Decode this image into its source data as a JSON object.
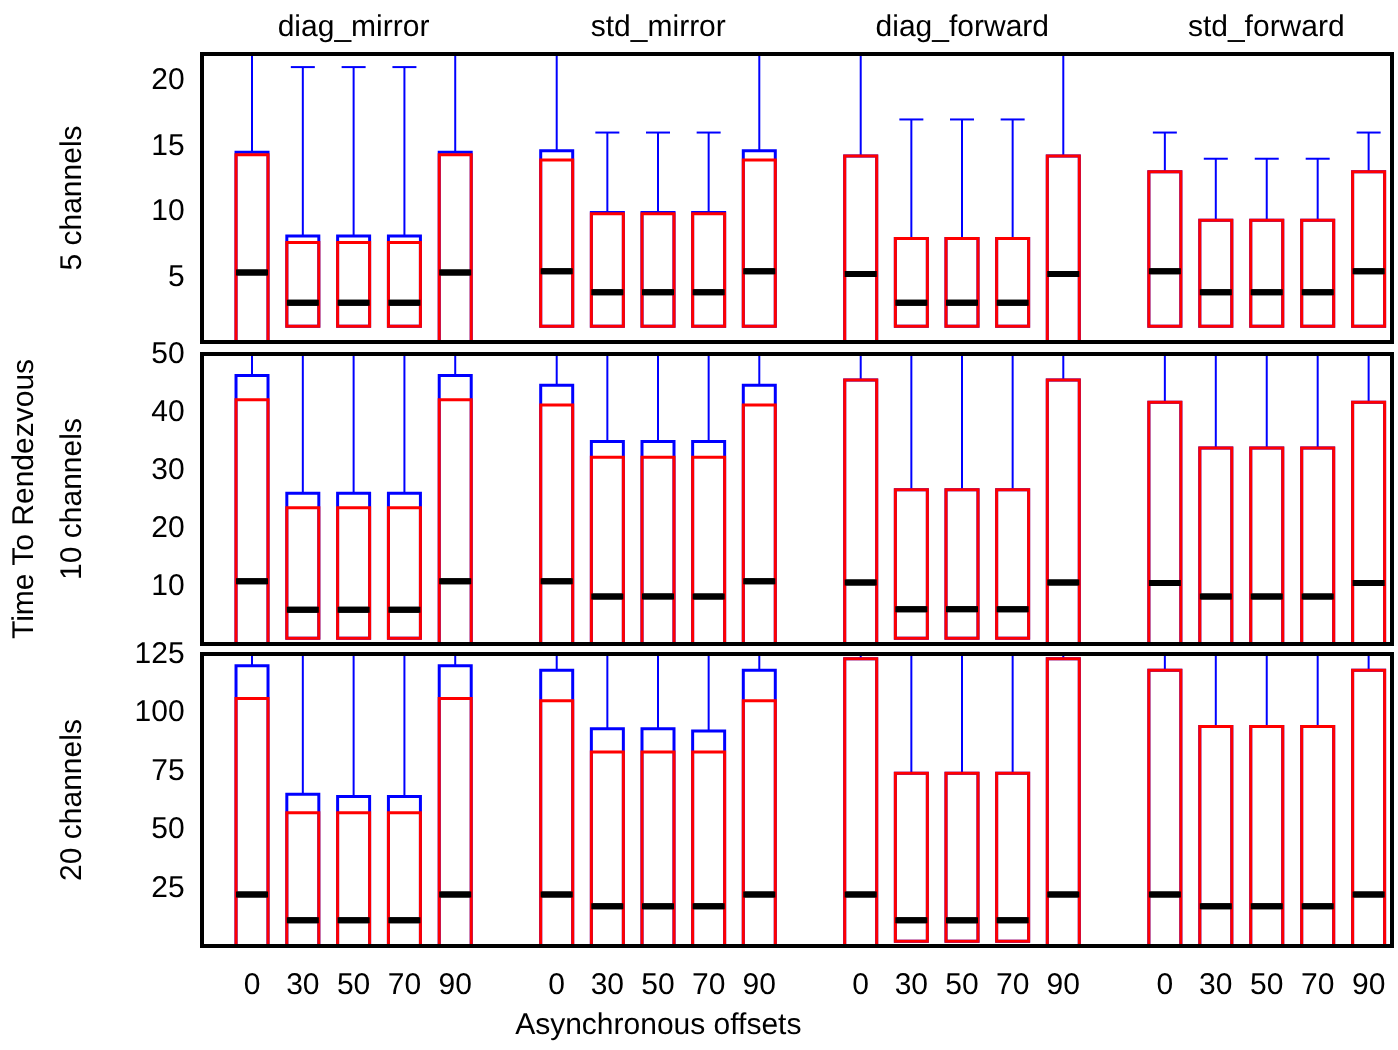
{
  "chart_data": [
    {
      "type": "box",
      "title": "diag_mirror",
      "ylabel": "5 channels",
      "tick_labels": "y",
      "ylim": [
        0,
        22
      ],
      "yticks": [
        5,
        10,
        15,
        20
      ],
      "categories": [
        "0",
        "30",
        "50",
        "70",
        "90"
      ],
      "series": [
        {
          "color": "#0000ff",
          "boxes": [
            {
              "low": 0,
              "q1": 0,
              "median": 5.3,
              "q3": 14.5,
              "high": 22
            },
            {
              "low": 1.2,
              "q1": 1.2,
              "median": 3,
              "q3": 8.1,
              "high": 21
            },
            {
              "low": 1.2,
              "q1": 1.2,
              "median": 3,
              "q3": 8.1,
              "high": 21
            },
            {
              "low": 1.2,
              "q1": 1.2,
              "median": 3,
              "q3": 8.1,
              "high": 21
            },
            {
              "low": 0,
              "q1": 0,
              "median": 5.3,
              "q3": 14.5,
              "high": 22
            }
          ]
        },
        {
          "color": "#ff0000",
          "boxes": [
            {
              "low": 0,
              "q1": 0,
              "median": 5.3,
              "q3": 14.3,
              "high": 14.3
            },
            {
              "low": 1.2,
              "q1": 1.2,
              "median": 3,
              "q3": 7.6,
              "high": 7.6
            },
            {
              "low": 1.2,
              "q1": 1.2,
              "median": 3,
              "q3": 7.6,
              "high": 7.6
            },
            {
              "low": 1.2,
              "q1": 1.2,
              "median": 3,
              "q3": 7.6,
              "high": 7.6
            },
            {
              "low": 0,
              "q1": 0,
              "median": 5.3,
              "q3": 14.3,
              "high": 14.3
            }
          ]
        }
      ]
    },
    {
      "type": "box",
      "title": "std_mirror",
      "tick_labels": false,
      "ylim": [
        0,
        22
      ],
      "yticks": [
        5,
        10,
        15,
        20
      ],
      "categories": [
        "0",
        "30",
        "50",
        "70",
        "90"
      ],
      "series": [
        {
          "color": "#0000ff",
          "boxes": [
            {
              "low": 1.2,
              "q1": 1.2,
              "median": 5.4,
              "q3": 14.6,
              "high": 22
            },
            {
              "low": 1.2,
              "q1": 1.2,
              "median": 3.8,
              "q3": 9.9,
              "high": 16
            },
            {
              "low": 1.2,
              "q1": 1.2,
              "median": 3.8,
              "q3": 9.9,
              "high": 16
            },
            {
              "low": 1.2,
              "q1": 1.2,
              "median": 3.8,
              "q3": 9.9,
              "high": 16
            },
            {
              "low": 1.2,
              "q1": 1.2,
              "median": 5.4,
              "q3": 14.6,
              "high": 22
            }
          ]
        },
        {
          "color": "#ff0000",
          "boxes": [
            {
              "low": 1.2,
              "q1": 1.2,
              "median": 5.4,
              "q3": 13.9,
              "high": 13.9
            },
            {
              "low": 1.2,
              "q1": 1.2,
              "median": 3.8,
              "q3": 9.8,
              "high": 9.8
            },
            {
              "low": 1.2,
              "q1": 1.2,
              "median": 3.8,
              "q3": 9.8,
              "high": 9.8
            },
            {
              "low": 1.2,
              "q1": 1.2,
              "median": 3.8,
              "q3": 9.8,
              "high": 9.8
            },
            {
              "low": 1.2,
              "q1": 1.2,
              "median": 5.4,
              "q3": 13.9,
              "high": 13.9
            }
          ]
        }
      ]
    },
    {
      "type": "box",
      "title": "diag_forward",
      "tick_labels": false,
      "ylim": [
        0,
        22
      ],
      "yticks": [
        5,
        10,
        15,
        20
      ],
      "categories": [
        "0",
        "30",
        "50",
        "70",
        "90"
      ],
      "series": [
        {
          "color": "#0000ff",
          "boxes": [
            {
              "low": 0,
              "q1": 0,
              "median": 5.2,
              "q3": 14.2,
              "high": 22
            },
            {
              "low": 1.2,
              "q1": 1.2,
              "median": 3,
              "q3": 7.9,
              "high": 17
            },
            {
              "low": 1.2,
              "q1": 1.2,
              "median": 3,
              "q3": 7.9,
              "high": 17
            },
            {
              "low": 1.2,
              "q1": 1.2,
              "median": 3,
              "q3": 7.9,
              "high": 17
            },
            {
              "low": 0,
              "q1": 0,
              "median": 5.2,
              "q3": 14.2,
              "high": 22
            }
          ]
        },
        {
          "color": "#ff0000",
          "boxes": [
            {
              "low": 0,
              "q1": 0,
              "median": 5.2,
              "q3": 14.2,
              "high": 14.2
            },
            {
              "low": 1.2,
              "q1": 1.2,
              "median": 3,
              "q3": 7.9,
              "high": 7.9
            },
            {
              "low": 1.2,
              "q1": 1.2,
              "median": 3,
              "q3": 7.9,
              "high": 7.9
            },
            {
              "low": 1.2,
              "q1": 1.2,
              "median": 3,
              "q3": 7.9,
              "high": 7.9
            },
            {
              "low": 0,
              "q1": 0,
              "median": 5.2,
              "q3": 14.2,
              "high": 14.2
            }
          ]
        }
      ]
    },
    {
      "type": "box",
      "title": "std_forward",
      "tick_labels": false,
      "ylim": [
        0,
        22
      ],
      "yticks": [
        5,
        10,
        15,
        20
      ],
      "categories": [
        "0",
        "30",
        "50",
        "70",
        "90"
      ],
      "series": [
        {
          "color": "#0000ff",
          "boxes": [
            {
              "low": 1.2,
              "q1": 1.2,
              "median": 5.4,
              "q3": 13,
              "high": 16
            },
            {
              "low": 1.2,
              "q1": 1.2,
              "median": 3.8,
              "q3": 9.3,
              "high": 14
            },
            {
              "low": 1.2,
              "q1": 1.2,
              "median": 3.8,
              "q3": 9.3,
              "high": 14
            },
            {
              "low": 1.2,
              "q1": 1.2,
              "median": 3.8,
              "q3": 9.3,
              "high": 14
            },
            {
              "low": 1.2,
              "q1": 1.2,
              "median": 5.4,
              "q3": 13,
              "high": 16
            }
          ]
        },
        {
          "color": "#ff0000",
          "boxes": [
            {
              "low": 1.2,
              "q1": 1.2,
              "median": 5.4,
              "q3": 13,
              "high": 13
            },
            {
              "low": 1.2,
              "q1": 1.2,
              "median": 3.8,
              "q3": 9.3,
              "high": 9.3
            },
            {
              "low": 1.2,
              "q1": 1.2,
              "median": 3.8,
              "q3": 9.3,
              "high": 9.3
            },
            {
              "low": 1.2,
              "q1": 1.2,
              "median": 3.8,
              "q3": 9.3,
              "high": 9.3
            },
            {
              "low": 1.2,
              "q1": 1.2,
              "median": 5.4,
              "q3": 13,
              "high": 13
            }
          ]
        }
      ]
    },
    {
      "type": "box",
      "ylabel": "10 channels",
      "annotations": [
        "Time To Rendezvous"
      ],
      "tick_labels": "y",
      "ylim": [
        0,
        50
      ],
      "yticks": [
        10,
        20,
        30,
        40,
        50
      ],
      "categories": [
        "0",
        "30",
        "50",
        "70",
        "90"
      ],
      "series": [
        {
          "color": "#0000ff",
          "boxes": [
            {
              "low": 0,
              "q1": 0,
              "median": 10.8,
              "q3": 46.3,
              "high": 50
            },
            {
              "low": 1,
              "q1": 1,
              "median": 5.9,
              "q3": 26,
              "high": 50
            },
            {
              "low": 1,
              "q1": 1,
              "median": 5.9,
              "q3": 26,
              "high": 50
            },
            {
              "low": 1,
              "q1": 1,
              "median": 5.9,
              "q3": 26,
              "high": 50
            },
            {
              "low": 0,
              "q1": 0,
              "median": 10.8,
              "q3": 46.3,
              "high": 50
            }
          ]
        },
        {
          "color": "#ff0000",
          "boxes": [
            {
              "low": 0,
              "q1": 0,
              "median": 10.8,
              "q3": 42.1,
              "high": 42.1
            },
            {
              "low": 1,
              "q1": 1,
              "median": 5.9,
              "q3": 23.5,
              "high": 23.5
            },
            {
              "low": 1,
              "q1": 1,
              "median": 5.9,
              "q3": 23.5,
              "high": 23.5
            },
            {
              "low": 1,
              "q1": 1,
              "median": 5.9,
              "q3": 23.5,
              "high": 23.5
            },
            {
              "low": 0,
              "q1": 0,
              "median": 10.8,
              "q3": 42.1,
              "high": 42.1
            }
          ]
        }
      ]
    },
    {
      "type": "box",
      "tick_labels": false,
      "ylim": [
        0,
        50
      ],
      "yticks": [
        10,
        20,
        30,
        40,
        50
      ],
      "categories": [
        "0",
        "30",
        "50",
        "70",
        "90"
      ],
      "series": [
        {
          "color": "#0000ff",
          "boxes": [
            {
              "low": 0,
              "q1": 0,
              "median": 10.8,
              "q3": 44.6,
              "high": 50
            },
            {
              "low": 0,
              "q1": 0,
              "median": 8.2,
              "q3": 34.9,
              "high": 50
            },
            {
              "low": 0,
              "q1": 0,
              "median": 8.2,
              "q3": 34.9,
              "high": 50
            },
            {
              "low": 0,
              "q1": 0,
              "median": 8.2,
              "q3": 34.9,
              "high": 50
            },
            {
              "low": 0,
              "q1": 0,
              "median": 10.8,
              "q3": 44.6,
              "high": 50
            }
          ]
        },
        {
          "color": "#ff0000",
          "boxes": [
            {
              "low": 0,
              "q1": 0,
              "median": 10.8,
              "q3": 41.2,
              "high": 41.2
            },
            {
              "low": 0,
              "q1": 0,
              "median": 8.2,
              "q3": 32.2,
              "high": 32.2
            },
            {
              "low": 0,
              "q1": 0,
              "median": 8.2,
              "q3": 32.2,
              "high": 32.2
            },
            {
              "low": 0,
              "q1": 0,
              "median": 8.2,
              "q3": 32.2,
              "high": 32.2
            },
            {
              "low": 0,
              "q1": 0,
              "median": 10.8,
              "q3": 41.2,
              "high": 41.2
            }
          ]
        }
      ]
    },
    {
      "type": "box",
      "tick_labels": false,
      "ylim": [
        0,
        50
      ],
      "yticks": [
        10,
        20,
        30,
        40,
        50
      ],
      "categories": [
        "0",
        "30",
        "50",
        "70",
        "90"
      ],
      "series": [
        {
          "color": "#0000ff",
          "boxes": [
            {
              "low": 0,
              "q1": 0,
              "median": 10.6,
              "q3": 45.5,
              "high": 50
            },
            {
              "low": 1,
              "q1": 1,
              "median": 6,
              "q3": 26.6,
              "high": 50
            },
            {
              "low": 1,
              "q1": 1,
              "median": 6,
              "q3": 26.6,
              "high": 50
            },
            {
              "low": 1,
              "q1": 1,
              "median": 6,
              "q3": 26.6,
              "high": 50
            },
            {
              "low": 0,
              "q1": 0,
              "median": 10.6,
              "q3": 45.5,
              "high": 50
            }
          ]
        },
        {
          "color": "#ff0000",
          "boxes": [
            {
              "low": 0,
              "q1": 0,
              "median": 10.6,
              "q3": 45.5,
              "high": 45.5
            },
            {
              "low": 1,
              "q1": 1,
              "median": 6,
              "q3": 26.6,
              "high": 26.6
            },
            {
              "low": 1,
              "q1": 1,
              "median": 6,
              "q3": 26.6,
              "high": 26.6
            },
            {
              "low": 1,
              "q1": 1,
              "median": 6,
              "q3": 26.6,
              "high": 26.6
            },
            {
              "low": 0,
              "q1": 0,
              "median": 10.6,
              "q3": 45.5,
              "high": 45.5
            }
          ]
        }
      ]
    },
    {
      "type": "box",
      "tick_labels": false,
      "ylim": [
        0,
        50
      ],
      "yticks": [
        10,
        20,
        30,
        40,
        50
      ],
      "categories": [
        "0",
        "30",
        "50",
        "70",
        "90"
      ],
      "series": [
        {
          "color": "#0000ff",
          "boxes": [
            {
              "low": 0,
              "q1": 0,
              "median": 10.5,
              "q3": 41.7,
              "high": 50
            },
            {
              "low": 0,
              "q1": 0,
              "median": 8.2,
              "q3": 33.8,
              "high": 50
            },
            {
              "low": 0,
              "q1": 0,
              "median": 8.2,
              "q3": 33.8,
              "high": 50
            },
            {
              "low": 0,
              "q1": 0,
              "median": 8.2,
              "q3": 33.8,
              "high": 50
            },
            {
              "low": 0,
              "q1": 0,
              "median": 10.5,
              "q3": 41.7,
              "high": 50
            }
          ]
        },
        {
          "color": "#ff0000",
          "boxes": [
            {
              "low": 0,
              "q1": 0,
              "median": 10.5,
              "q3": 41.7,
              "high": 41.7
            },
            {
              "low": 0,
              "q1": 0,
              "median": 8.2,
              "q3": 33.8,
              "high": 33.8
            },
            {
              "low": 0,
              "q1": 0,
              "median": 8.2,
              "q3": 33.8,
              "high": 33.8
            },
            {
              "low": 0,
              "q1": 0,
              "median": 8.2,
              "q3": 33.8,
              "high": 33.8
            },
            {
              "low": 0,
              "q1": 0,
              "median": 10.5,
              "q3": 41.7,
              "high": 41.7
            }
          ]
        }
      ]
    },
    {
      "type": "box",
      "ylabel": "20 channels",
      "ylim": [
        0,
        125
      ],
      "yticks": [
        25,
        50,
        75,
        100,
        125
      ],
      "categories": [
        "0",
        "30",
        "50",
        "70",
        "90"
      ],
      "series": [
        {
          "color": "#0000ff",
          "boxes": [
            {
              "low": 0,
              "q1": 0,
              "median": 22,
              "q3": 120,
              "high": 125
            },
            {
              "low": 0,
              "q1": 0,
              "median": 11,
              "q3": 65,
              "high": 125
            },
            {
              "low": 0,
              "q1": 0,
              "median": 11,
              "q3": 64,
              "high": 125
            },
            {
              "low": 0,
              "q1": 0,
              "median": 11,
              "q3": 64,
              "high": 125
            },
            {
              "low": 0,
              "q1": 0,
              "median": 22,
              "q3": 120,
              "high": 125
            }
          ]
        },
        {
          "color": "#ff0000",
          "boxes": [
            {
              "low": 0,
              "q1": 0,
              "median": 22,
              "q3": 106,
              "high": 106
            },
            {
              "low": 0,
              "q1": 0,
              "median": 11,
              "q3": 57,
              "high": 57
            },
            {
              "low": 0,
              "q1": 0,
              "median": 11,
              "q3": 57,
              "high": 57
            },
            {
              "low": 0,
              "q1": 0,
              "median": 11,
              "q3": 57,
              "high": 57
            },
            {
              "low": 0,
              "q1": 0,
              "median": 22,
              "q3": 106,
              "high": 106
            }
          ]
        }
      ]
    },
    {
      "type": "box",
      "xlabel": "Asynchronous offsets",
      "tick_labels": "x",
      "ylim": [
        0,
        125
      ],
      "yticks": [
        25,
        50,
        75,
        100,
        125
      ],
      "categories": [
        "0",
        "30",
        "50",
        "70",
        "90"
      ],
      "series": [
        {
          "color": "#0000ff",
          "boxes": [
            {
              "low": 0,
              "q1": 0,
              "median": 22,
              "q3": 118,
              "high": 125
            },
            {
              "low": 0,
              "q1": 0,
              "median": 17,
              "q3": 93,
              "high": 125
            },
            {
              "low": 0,
              "q1": 0,
              "median": 17,
              "q3": 93,
              "high": 125
            },
            {
              "low": 0,
              "q1": 0,
              "median": 17,
              "q3": 92,
              "high": 125
            },
            {
              "low": 0,
              "q1": 0,
              "median": 22,
              "q3": 118,
              "high": 125
            }
          ]
        },
        {
          "color": "#ff0000",
          "boxes": [
            {
              "low": 0,
              "q1": 0,
              "median": 22,
              "q3": 105,
              "high": 105
            },
            {
              "low": 0,
              "q1": 0,
              "median": 17,
              "q3": 83,
              "high": 83
            },
            {
              "low": 0,
              "q1": 0,
              "median": 17,
              "q3": 83,
              "high": 83
            },
            {
              "low": 0,
              "q1": 0,
              "median": 17,
              "q3": 83,
              "high": 83
            },
            {
              "low": 0,
              "q1": 0,
              "median": 22,
              "q3": 105,
              "high": 105
            }
          ]
        }
      ]
    },
    {
      "type": "box",
      "tick_labels": "x",
      "ylim": [
        0,
        125
      ],
      "yticks": [
        25,
        50,
        75,
        100,
        125
      ],
      "categories": [
        "0",
        "30",
        "50",
        "70",
        "90"
      ],
      "series": [
        {
          "color": "#0000ff",
          "boxes": [
            {
              "low": 0,
              "q1": 0,
              "median": 22,
              "q3": 123,
              "high": 125
            },
            {
              "low": 2,
              "q1": 2,
              "median": 11,
              "q3": 74,
              "high": 125
            },
            {
              "low": 2,
              "q1": 2,
              "median": 11,
              "q3": 74,
              "high": 125
            },
            {
              "low": 2,
              "q1": 2,
              "median": 11,
              "q3": 74,
              "high": 125
            },
            {
              "low": 0,
              "q1": 0,
              "median": 22,
              "q3": 123,
              "high": 125
            }
          ]
        },
        {
          "color": "#ff0000",
          "boxes": [
            {
              "low": 0,
              "q1": 0,
              "median": 22,
              "q3": 123,
              "high": 123
            },
            {
              "low": 2,
              "q1": 2,
              "median": 11,
              "q3": 74,
              "high": 74
            },
            {
              "low": 2,
              "q1": 2,
              "median": 11,
              "q3": 74,
              "high": 74
            },
            {
              "low": 2,
              "q1": 2,
              "median": 11,
              "q3": 74,
              "high": 74
            },
            {
              "low": 0,
              "q1": 0,
              "median": 22,
              "q3": 123,
              "high": 123
            }
          ]
        }
      ]
    },
    {
      "type": "box",
      "tick_labels": "x",
      "ylim": [
        0,
        125
      ],
      "yticks": [
        25,
        50,
        75,
        100,
        125
      ],
      "categories": [
        "0",
        "30",
        "50",
        "70",
        "90"
      ],
      "series": [
        {
          "color": "#0000ff",
          "boxes": [
            {
              "low": 0,
              "q1": 0,
              "median": 22,
              "q3": 118,
              "high": 125
            },
            {
              "low": 0,
              "q1": 0,
              "median": 17,
              "q3": 94,
              "high": 125
            },
            {
              "low": 0,
              "q1": 0,
              "median": 17,
              "q3": 94,
              "high": 125
            },
            {
              "low": 0,
              "q1": 0,
              "median": 17,
              "q3": 94,
              "high": 125
            },
            {
              "low": 0,
              "q1": 0,
              "median": 22,
              "q3": 118,
              "high": 125
            }
          ]
        },
        {
          "color": "#ff0000",
          "boxes": [
            {
              "low": 0,
              "q1": 0,
              "median": 22,
              "q3": 118,
              "high": 118
            },
            {
              "low": 0,
              "q1": 0,
              "median": 17,
              "q3": 94,
              "high": 94
            },
            {
              "low": 0,
              "q1": 0,
              "median": 17,
              "q3": 94,
              "high": 94
            },
            {
              "low": 0,
              "q1": 0,
              "median": 17,
              "q3": 94,
              "high": 94
            },
            {
              "low": 0,
              "q1": 0,
              "median": 22,
              "q3": 118,
              "high": 118
            }
          ]
        }
      ]
    }
  ]
}
